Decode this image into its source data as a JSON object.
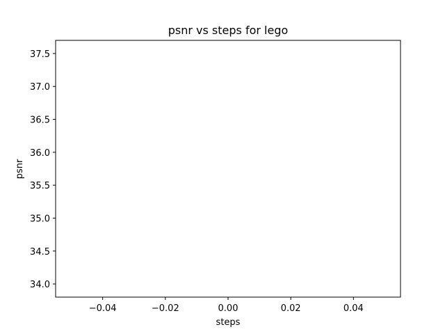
{
  "chart_data": {
    "type": "line",
    "title": "psnr vs steps for lego",
    "xlabel": "steps",
    "ylabel": "psnr",
    "xlim": [
      -0.055,
      0.055
    ],
    "ylim": [
      33.8,
      37.7
    ],
    "x_ticks": [
      -0.04,
      -0.02,
      0.0,
      0.02,
      0.04
    ],
    "x_tick_labels": [
      "−0.04",
      "−0.02",
      "0.00",
      "0.02",
      "0.04"
    ],
    "y_ticks": [
      34.0,
      34.5,
      35.0,
      35.5,
      36.0,
      36.5,
      37.0,
      37.5
    ],
    "y_tick_labels": [
      "34.0",
      "34.5",
      "35.0",
      "35.5",
      "36.0",
      "36.5",
      "37.0",
      "37.5"
    ],
    "series": [],
    "grid": false,
    "legend": "none"
  }
}
